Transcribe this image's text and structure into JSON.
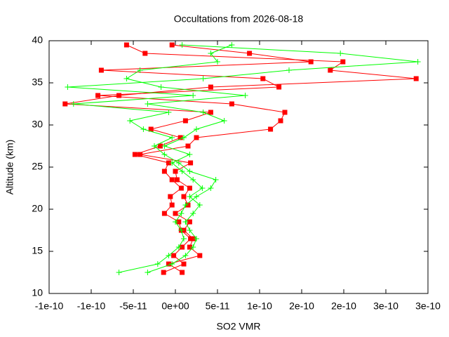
{
  "chart_data": {
    "type": "line",
    "title": "Occultations from 2026-08-18",
    "x_label": "SO2 VMR",
    "y_label": "Altitude (km)",
    "xlim": [
      -1.5e-10,
      3e-10
    ],
    "ylim": [
      10,
      40
    ],
    "xticks": [
      {
        "value": -1.5e-10,
        "label": "-1e-10"
      },
      {
        "value": -1e-10,
        "label": "-1e-10"
      },
      {
        "value": -5e-11,
        "label": "-5e-11"
      },
      {
        "value": 0,
        "label": "0e+00"
      },
      {
        "value": 5e-11,
        "label": "5e-11"
      },
      {
        "value": 1e-10,
        "label": "1e-10"
      },
      {
        "value": 1.5e-10,
        "label": "2e-10"
      },
      {
        "value": 2e-10,
        "label": "2e-10"
      },
      {
        "value": 2.5e-10,
        "label": "3e-10"
      },
      {
        "value": 3e-10,
        "label": "3e-10"
      }
    ],
    "yticks": [
      10,
      15,
      20,
      25,
      30,
      35,
      40
    ],
    "y": [
      12.5,
      13.5,
      14.5,
      15.5,
      16.5,
      17.5,
      18.5,
      19.5,
      20.5,
      21.5,
      22.5,
      23.5,
      24.5,
      25.5,
      26.5,
      27.5,
      28.5,
      29.5,
      30.5,
      31.5,
      32.5,
      33.5,
      34.5,
      35.5,
      36.5,
      37.5,
      38.5,
      39.5
    ],
    "series": [
      {
        "color": "#ff0000",
        "marker": "square",
        "values": [
          -1.4e-11,
          1e-11,
          -2e-12,
          8e-12,
          1.8e-11,
          7e-12,
          4e-12,
          -1.3e-11,
          -4e-12,
          -6e-12,
          7e-12,
          -4e-12,
          -1.3e-11,
          -8e-12,
          -4.8e-11,
          -1.8e-11,
          6e-12,
          -2.9e-11,
          1.2e-11,
          4.2e-11,
          -1.31e-10,
          -6.7e-11,
          4.2e-11,
          2.86e-10,
          1.84e-10,
          1.99e-10,
          -3.6e-11,
          -5.8e-11
        ]
      },
      {
        "color": "#ff0000",
        "marker": "square",
        "values": [
          8e-12,
          -8e-12,
          2.9e-11,
          1.7e-11,
          2.1e-11,
          1e-11,
          1.7e-11,
          0,
          1.5e-11,
          1e-11,
          1.7e-11,
          2e-12,
          0,
          1.8e-11,
          -4.2e-11,
          1.5e-11,
          2.5e-11,
          1.13e-10,
          1.25e-10,
          1.3e-10,
          6.7e-11,
          -9.2e-11,
          1.23e-10,
          1.04e-10,
          -8.8e-11,
          1.61e-10,
          8.8e-11,
          -4e-12
        ]
      },
      {
        "color": "#00ff00",
        "marker": "plus",
        "values": [
          -6.7e-11,
          -2.1e-11,
          -8e-12,
          4e-12,
          1e-11,
          7e-12,
          0,
          7e-12,
          1.2e-11,
          2.5e-11,
          4.2e-11,
          4.8e-11,
          1.7e-11,
          4e-12,
          -1.3e-11,
          -2.5e-11,
          -4e-12,
          -3.8e-11,
          -5.4e-11,
          -8e-12,
          -1.21e-10,
          2.1e-11,
          -1.28e-10,
          3.3e-11,
          1.35e-10,
          2.88e-10,
          1.96e-10,
          8e-12
        ]
      },
      {
        "color": "#00ff00",
        "marker": "plus",
        "values": [
          -3.3e-11,
          -4e-12,
          1.2e-11,
          2.1e-11,
          2.5e-11,
          1.7e-11,
          1.2e-11,
          2.1e-11,
          2.9e-11,
          1.7e-11,
          3.2e-11,
          2.1e-11,
          8e-12,
          -4e-12,
          1.7e-11,
          -1.3e-11,
          1e-11,
          2.5e-11,
          5.8e-11,
          3.3e-11,
          -3.3e-11,
          8.3e-11,
          -1.7e-11,
          -5.8e-11,
          -4.2e-11,
          5e-11,
          4.2e-11,
          6.7e-11
        ]
      }
    ]
  }
}
